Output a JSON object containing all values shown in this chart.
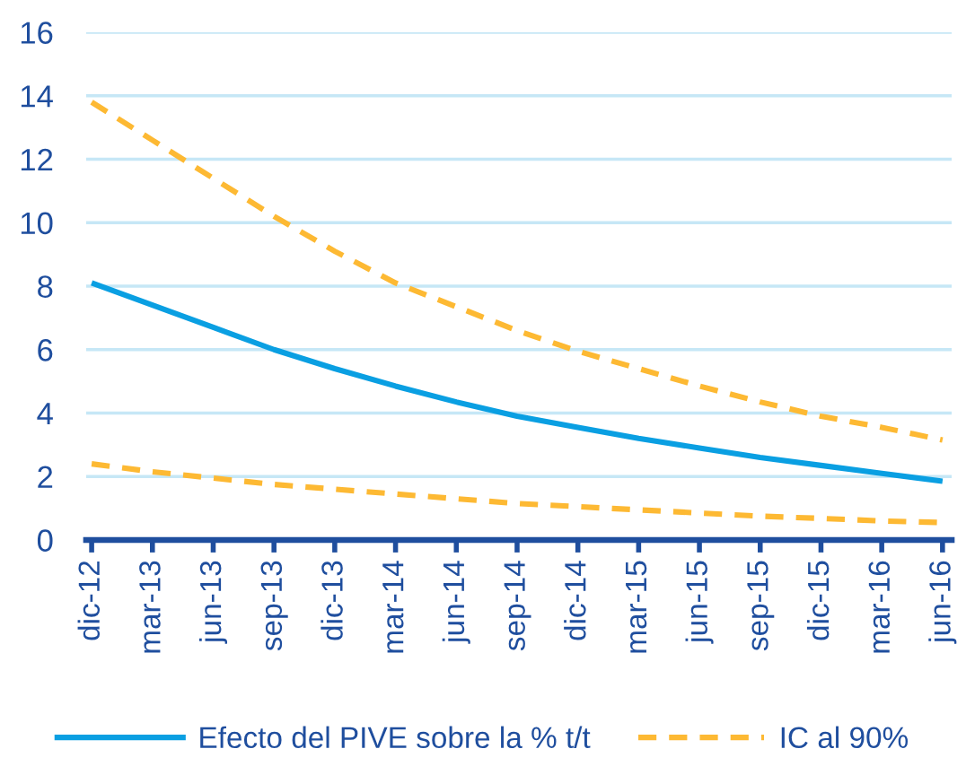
{
  "chart_data": {
    "type": "line",
    "categories": [
      "dic-12",
      "mar-13",
      "jun-13",
      "sep-13",
      "dic-13",
      "mar-14",
      "jun-14",
      "sep-14",
      "dic-14",
      "mar-15",
      "jun-15",
      "sep-15",
      "dic-15",
      "mar-16",
      "jun-16"
    ],
    "series": [
      {
        "name": "Efecto del PIVE sobre la % t/t",
        "color": "#0a9fe2",
        "line_style": "solid",
        "values": [
          8.1,
          7.4,
          6.7,
          6.0,
          5.4,
          4.85,
          4.35,
          3.9,
          3.55,
          3.2,
          2.9,
          2.6,
          2.35,
          2.1,
          1.85
        ]
      },
      {
        "name": "IC al 90%",
        "color": "#fdb933",
        "line_style": "dashed",
        "values": [
          13.8,
          12.6,
          11.4,
          10.2,
          9.1,
          8.1,
          7.35,
          6.6,
          5.95,
          5.4,
          4.85,
          4.35,
          3.9,
          3.55,
          3.15
        ]
      },
      {
        "color": "#fdb933",
        "line_style": "dashed",
        "values": [
          2.4,
          2.15,
          1.95,
          1.75,
          1.6,
          1.45,
          1.3,
          1.15,
          1.05,
          0.95,
          0.85,
          0.75,
          0.68,
          0.6,
          0.55
        ]
      }
    ],
    "ylim": [
      0,
      16
    ],
    "yticks": [
      0,
      2,
      4,
      6,
      8,
      10,
      12,
      14,
      16
    ],
    "grid": "y",
    "legend": "bottom"
  }
}
